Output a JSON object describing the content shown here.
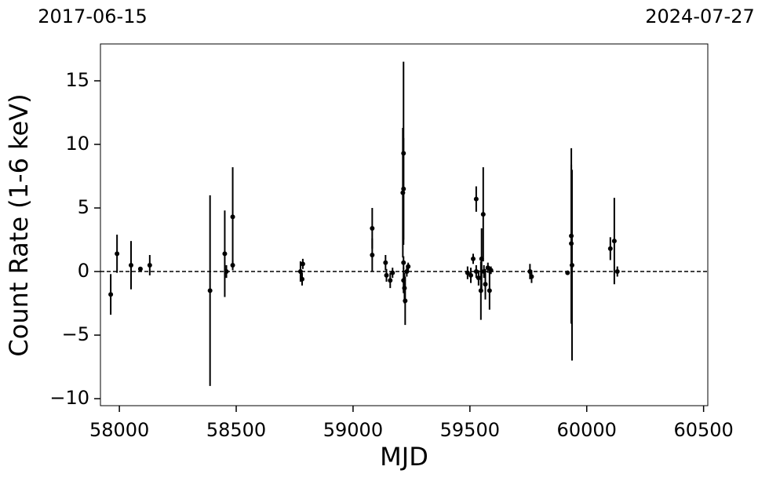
{
  "chart_data": {
    "type": "errorbar",
    "x_label": "MJD",
    "y_label": "Count Rate (1-6 keV)",
    "xlim": [
      57919,
      60518
    ],
    "ylim": [
      -10.55,
      17.9
    ],
    "xticks": [
      58000,
      58500,
      59000,
      59500,
      60000,
      60500
    ],
    "yticks": [
      {
        "value": -10,
        "label": "−10"
      },
      {
        "value": -5,
        "label": "−5"
      },
      0,
      5,
      10,
      15
    ],
    "x2ticks": [
      {
        "value": 57919,
        "label": "2017-06-15"
      },
      {
        "value": 60518,
        "label": "2024-07-27"
      }
    ],
    "hline": 0,
    "series": [
      {
        "color": "#000000",
        "x": [
          57963,
          57990,
          58050,
          58090,
          58130,
          58388,
          58451,
          58458,
          58485,
          58485,
          58775,
          58782,
          58785,
          59082,
          59082,
          59139,
          59143,
          59159,
          59169,
          59213,
          59216,
          59216,
          59216,
          59216,
          59220,
          59223,
          59230,
          59236,
          59490,
          59504,
          59514,
          59527,
          59527,
          59537,
          59547,
          59550,
          59557,
          59560,
          59566,
          59577,
          59584,
          59590,
          59757,
          59764,
          59918,
          59934,
          59934,
          59937,
          60101,
          60118,
          60131
        ],
        "values": [
          -1.8,
          1.4,
          0.5,
          0.2,
          0.5,
          -1.5,
          1.4,
          0.0,
          4.3,
          0.5,
          0.0,
          -0.6,
          0.6,
          3.4,
          1.3,
          0.7,
          -0.3,
          -0.7,
          -0.1,
          6.2,
          9.3,
          6.5,
          0.7,
          -0.7,
          -1.3,
          -2.3,
          0.0,
          0.4,
          -0.1,
          -0.3,
          1.0,
          5.7,
          0.0,
          -0.5,
          -1.5,
          1.0,
          4.5,
          0.0,
          -1.0,
          0.3,
          -1.5,
          0.1,
          0.0,
          -0.4,
          -0.1,
          2.8,
          2.2,
          0.5,
          1.8,
          2.4,
          0.0
        ],
        "errors": [
          1.6,
          1.5,
          1.9,
          0.1,
          0.8,
          7.5,
          3.4,
          0.5,
          3.9,
          0.4,
          0.8,
          0.5,
          0.4,
          1.6,
          1.3,
          0.6,
          0.5,
          0.6,
          0.4,
          5.1,
          7.2,
          4.0,
          0.5,
          1.0,
          1.2,
          1.9,
          0.4,
          0.3,
          0.5,
          0.6,
          0.4,
          1.0,
          0.5,
          0.6,
          2.3,
          2.4,
          3.7,
          0.5,
          1.2,
          0.4,
          1.5,
          0.3,
          0.6,
          0.5,
          0.1,
          6.9,
          6.2,
          7.5,
          0.9,
          3.4,
          0.4
        ]
      }
    ]
  }
}
